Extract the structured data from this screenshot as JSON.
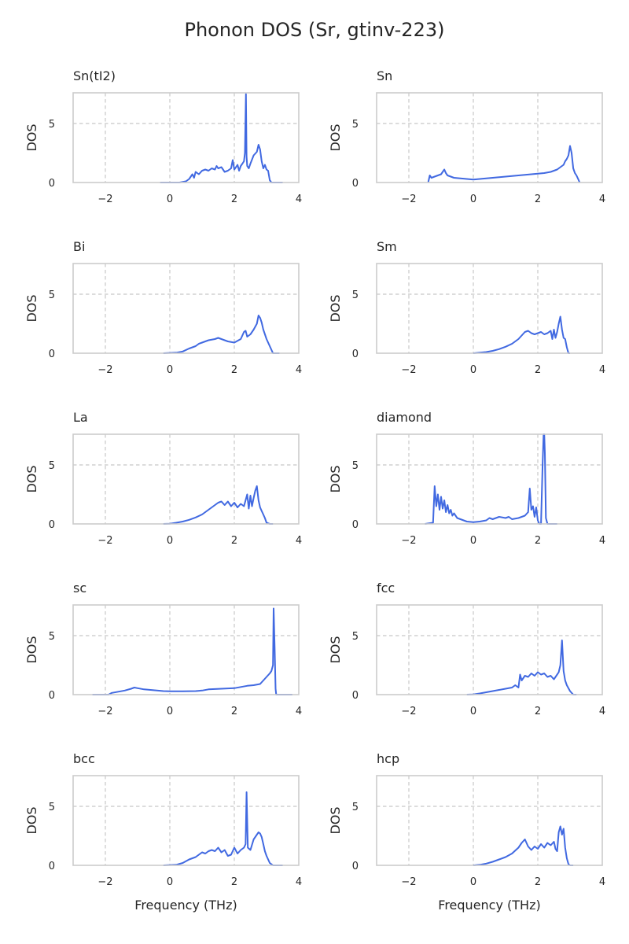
{
  "figure": {
    "title": "Phonon DOS (Sr, gtinv-223)",
    "line_color": "#4169e1"
  },
  "chart_data": [
    {
      "type": "line",
      "title": "Sn(tI2)",
      "xlabel": "",
      "ylabel": "DOS",
      "xlim": [
        -3,
        4
      ],
      "ylim": [
        0,
        7.6
      ],
      "xticks": [
        "−2",
        "0",
        "2",
        "4"
      ],
      "xtick_values": [
        -2,
        0,
        2,
        4
      ],
      "yticks": [
        "0",
        "5"
      ],
      "ytick_values": [
        0,
        5
      ],
      "grid": true,
      "series": [
        {
          "x": [
            -0.3,
            0.3,
            0.5,
            0.6,
            0.7,
            0.75,
            0.8,
            0.9,
            1.0,
            1.1,
            1.2,
            1.3,
            1.4,
            1.45,
            1.5,
            1.6,
            1.7,
            1.8,
            1.9,
            1.95,
            2.0,
            2.05,
            2.1,
            2.15,
            2.2,
            2.25,
            2.3,
            2.33,
            2.36,
            2.38,
            2.4,
            2.45,
            2.5,
            2.6,
            2.7,
            2.75,
            2.8,
            2.85,
            2.9,
            2.95,
            3.0,
            3.05,
            3.1,
            3.15,
            3.5
          ],
          "y": [
            0,
            0,
            0.1,
            0.3,
            0.7,
            0.4,
            0.9,
            0.7,
            1.0,
            1.1,
            1.0,
            1.2,
            1.1,
            1.4,
            1.2,
            1.3,
            0.9,
            1.0,
            1.2,
            1.9,
            1.1,
            1.3,
            1.5,
            1.0,
            1.4,
            1.6,
            1.8,
            2.5,
            7.5,
            2.2,
            1.4,
            1.2,
            1.6,
            2.3,
            2.6,
            3.2,
            2.8,
            1.8,
            1.2,
            1.5,
            1.1,
            1.0,
            0.2,
            0,
            0
          ]
        }
      ]
    },
    {
      "type": "line",
      "title": "Sn",
      "xlabel": "",
      "ylabel": "DOS",
      "xlim": [
        -3,
        4
      ],
      "ylim": [
        0,
        7.6
      ],
      "xticks": [
        "−2",
        "0",
        "2",
        "4"
      ],
      "xtick_values": [
        -2,
        0,
        2,
        4
      ],
      "yticks": [
        "0",
        "5"
      ],
      "ytick_values": [
        0,
        5
      ],
      "grid": true,
      "series": [
        {
          "x": [
            -1.4,
            -1.35,
            -1.3,
            -1.2,
            -1.1,
            -1.0,
            -0.9,
            -0.85,
            -0.8,
            -0.6,
            -0.4,
            -0.2,
            0.0,
            0.2,
            0.4,
            0.6,
            0.8,
            1.0,
            1.2,
            1.4,
            1.6,
            1.8,
            2.0,
            2.2,
            2.4,
            2.5,
            2.6,
            2.7,
            2.8,
            2.85,
            2.9,
            2.95,
            3.0,
            3.05,
            3.1,
            3.15,
            3.2,
            3.25,
            3.3
          ],
          "y": [
            0,
            0.6,
            0.4,
            0.5,
            0.6,
            0.7,
            1.1,
            0.8,
            0.6,
            0.4,
            0.35,
            0.3,
            0.25,
            0.3,
            0.35,
            0.4,
            0.45,
            0.5,
            0.55,
            0.6,
            0.65,
            0.7,
            0.75,
            0.8,
            0.9,
            1.0,
            1.1,
            1.3,
            1.5,
            1.8,
            2.0,
            2.3,
            3.1,
            2.5,
            1.2,
            0.8,
            0.6,
            0.3,
            0
          ]
        }
      ]
    },
    {
      "type": "line",
      "title": "Bi",
      "xlabel": "",
      "ylabel": "DOS",
      "xlim": [
        -3,
        4
      ],
      "ylim": [
        0,
        7.6
      ],
      "xticks": [
        "−2",
        "0",
        "2",
        "4"
      ],
      "xtick_values": [
        -2,
        0,
        2,
        4
      ],
      "yticks": [
        "0",
        "5"
      ],
      "ytick_values": [
        0,
        5
      ],
      "grid": true,
      "series": [
        {
          "x": [
            -0.2,
            0.2,
            0.4,
            0.6,
            0.8,
            0.9,
            1.0,
            1.2,
            1.4,
            1.5,
            1.6,
            1.8,
            2.0,
            2.2,
            2.3,
            2.35,
            2.4,
            2.5,
            2.6,
            2.7,
            2.75,
            2.8,
            2.85,
            2.9,
            3.0,
            3.1,
            3.2,
            3.4
          ],
          "y": [
            0,
            0.05,
            0.15,
            0.4,
            0.6,
            0.8,
            0.9,
            1.1,
            1.2,
            1.3,
            1.2,
            1.0,
            0.9,
            1.2,
            1.8,
            1.9,
            1.4,
            1.6,
            2.0,
            2.5,
            3.2,
            3.0,
            2.6,
            2.0,
            1.2,
            0.6,
            0,
            0
          ]
        }
      ]
    },
    {
      "type": "line",
      "title": "Sm",
      "xlabel": "",
      "ylabel": "DOS",
      "xlim": [
        -3,
        4
      ],
      "ylim": [
        0,
        7.6
      ],
      "xticks": [
        "−2",
        "0",
        "2",
        "4"
      ],
      "xtick_values": [
        -2,
        0,
        2,
        4
      ],
      "yticks": [
        "0",
        "5"
      ],
      "ytick_values": [
        0,
        5
      ],
      "grid": true,
      "series": [
        {
          "x": [
            0.0,
            0.2,
            0.4,
            0.6,
            0.8,
            1.0,
            1.2,
            1.4,
            1.5,
            1.6,
            1.7,
            1.8,
            1.9,
            2.0,
            2.1,
            2.2,
            2.3,
            2.4,
            2.45,
            2.5,
            2.55,
            2.6,
            2.65,
            2.7,
            2.75,
            2.8,
            2.85,
            2.9,
            2.95,
            3.0
          ],
          "y": [
            0,
            0.05,
            0.1,
            0.2,
            0.35,
            0.55,
            0.8,
            1.2,
            1.5,
            1.8,
            1.9,
            1.7,
            1.6,
            1.7,
            1.8,
            1.6,
            1.7,
            1.9,
            1.2,
            2.0,
            1.3,
            1.8,
            2.5,
            3.1,
            2.0,
            1.3,
            1.2,
            0.5,
            0,
            0
          ]
        }
      ]
    },
    {
      "type": "line",
      "title": "La",
      "xlabel": "",
      "ylabel": "DOS",
      "xlim": [
        -3,
        4
      ],
      "ylim": [
        0,
        7.6
      ],
      "xticks": [
        "−2",
        "0",
        "2",
        "4"
      ],
      "xtick_values": [
        -2,
        0,
        2,
        4
      ],
      "yticks": [
        "0",
        "5"
      ],
      "ytick_values": [
        0,
        5
      ],
      "grid": true,
      "series": [
        {
          "x": [
            -0.2,
            0.0,
            0.2,
            0.4,
            0.6,
            0.8,
            1.0,
            1.2,
            1.4,
            1.5,
            1.6,
            1.7,
            1.8,
            1.9,
            2.0,
            2.1,
            2.2,
            2.3,
            2.4,
            2.45,
            2.5,
            2.55,
            2.6,
            2.65,
            2.7,
            2.75,
            2.8,
            2.85,
            2.9,
            2.95,
            3.0,
            3.1,
            3.2
          ],
          "y": [
            0,
            0.02,
            0.1,
            0.2,
            0.35,
            0.55,
            0.8,
            1.2,
            1.6,
            1.8,
            1.9,
            1.6,
            1.9,
            1.5,
            1.8,
            1.4,
            1.7,
            1.5,
            2.5,
            1.3,
            2.4,
            1.5,
            2.2,
            2.8,
            3.2,
            2.0,
            1.4,
            1.1,
            0.8,
            0.5,
            0.1,
            0,
            0
          ]
        }
      ]
    },
    {
      "type": "line",
      "title": "diamond",
      "xlabel": "",
      "ylabel": "DOS",
      "xlim": [
        -3,
        4
      ],
      "ylim": [
        0,
        7.6
      ],
      "xticks": [
        "−2",
        "0",
        "2",
        "4"
      ],
      "xtick_values": [
        -2,
        0,
        2,
        4
      ],
      "yticks": [
        "0",
        "5"
      ],
      "ytick_values": [
        0,
        5
      ],
      "grid": true,
      "series": [
        {
          "x": [
            -1.5,
            -1.25,
            -1.2,
            -1.15,
            -1.1,
            -1.05,
            -1.0,
            -0.95,
            -0.9,
            -0.85,
            -0.8,
            -0.75,
            -0.7,
            -0.65,
            -0.6,
            -0.5,
            -0.4,
            -0.3,
            -0.2,
            0.0,
            0.2,
            0.4,
            0.5,
            0.6,
            0.8,
            1.0,
            1.1,
            1.2,
            1.4,
            1.6,
            1.7,
            1.75,
            1.8,
            1.85,
            1.9,
            1.95,
            2.0,
            2.05,
            2.1,
            2.15,
            2.18,
            2.2,
            2.22,
            2.25,
            2.3,
            2.5,
            2.6
          ],
          "y": [
            0,
            0.1,
            3.2,
            1.5,
            2.5,
            1.2,
            2.3,
            1.3,
            2.0,
            1.0,
            1.6,
            0.9,
            1.2,
            0.7,
            0.9,
            0.5,
            0.4,
            0.3,
            0.2,
            0.15,
            0.2,
            0.3,
            0.5,
            0.4,
            0.6,
            0.5,
            0.6,
            0.4,
            0.5,
            0.7,
            1.0,
            3.0,
            1.2,
            1.5,
            0.6,
            1.4,
            0.3,
            0,
            0,
            5.0,
            7.6,
            7.6,
            6.0,
            0.5,
            0,
            0,
            0
          ]
        }
      ]
    },
    {
      "type": "line",
      "title": "sc",
      "xlabel": "",
      "ylabel": "DOS",
      "xlim": [
        -3,
        4
      ],
      "ylim": [
        0,
        7.6
      ],
      "xticks": [
        "−2",
        "0",
        "2",
        "4"
      ],
      "xtick_values": [
        -2,
        0,
        2,
        4
      ],
      "yticks": [
        "0",
        "5"
      ],
      "ytick_values": [
        0,
        5
      ],
      "grid": true,
      "series": [
        {
          "x": [
            -2.4,
            -1.9,
            -1.8,
            -1.6,
            -1.4,
            -1.2,
            -1.1,
            -1.0,
            -0.8,
            -0.6,
            -0.4,
            -0.2,
            0.0,
            0.4,
            0.8,
            1.0,
            1.2,
            1.6,
            2.0,
            2.2,
            2.4,
            2.6,
            2.8,
            2.9,
            3.0,
            3.1,
            3.15,
            3.2,
            3.22,
            3.25,
            3.28,
            3.3,
            3.8
          ],
          "y": [
            0,
            0,
            0.15,
            0.25,
            0.35,
            0.5,
            0.6,
            0.55,
            0.45,
            0.4,
            0.35,
            0.3,
            0.28,
            0.28,
            0.3,
            0.35,
            0.45,
            0.5,
            0.55,
            0.65,
            0.75,
            0.8,
            0.9,
            1.2,
            1.5,
            1.8,
            2.0,
            2.5,
            7.3,
            4.0,
            0.5,
            0,
            0
          ]
        }
      ]
    },
    {
      "type": "line",
      "title": "fcc",
      "xlabel": "",
      "ylabel": "DOS",
      "xlim": [
        -3,
        4
      ],
      "ylim": [
        0,
        7.6
      ],
      "xticks": [
        "−2",
        "0",
        "2",
        "4"
      ],
      "xtick_values": [
        -2,
        0,
        2,
        4
      ],
      "yticks": [
        "0",
        "5"
      ],
      "ytick_values": [
        0,
        5
      ],
      "grid": true,
      "series": [
        {
          "x": [
            -0.2,
            0.0,
            0.2,
            0.4,
            0.6,
            0.8,
            1.0,
            1.2,
            1.3,
            1.4,
            1.45,
            1.5,
            1.6,
            1.7,
            1.8,
            1.9,
            2.0,
            2.1,
            2.2,
            2.3,
            2.4,
            2.5,
            2.6,
            2.65,
            2.7,
            2.75,
            2.8,
            2.85,
            2.9,
            3.0,
            3.1,
            3.2
          ],
          "y": [
            0,
            0.02,
            0.1,
            0.2,
            0.3,
            0.4,
            0.5,
            0.6,
            0.8,
            0.6,
            1.7,
            1.2,
            1.6,
            1.5,
            1.8,
            1.6,
            1.9,
            1.7,
            1.8,
            1.5,
            1.6,
            1.3,
            1.7,
            1.9,
            2.5,
            4.6,
            2.0,
            1.2,
            0.8,
            0.3,
            0,
            0
          ]
        }
      ]
    },
    {
      "type": "line",
      "title": "bcc",
      "xlabel": "Frequency (THz)",
      "ylabel": "DOS",
      "xlim": [
        -3,
        4
      ],
      "ylim": [
        0,
        7.6
      ],
      "xticks": [
        "−2",
        "0",
        "2",
        "4"
      ],
      "xtick_values": [
        -2,
        0,
        2,
        4
      ],
      "yticks": [
        "0",
        "5"
      ],
      "ytick_values": [
        0,
        5
      ],
      "grid": true,
      "series": [
        {
          "x": [
            -0.2,
            0.2,
            0.4,
            0.6,
            0.8,
            0.9,
            1.0,
            1.1,
            1.2,
            1.3,
            1.4,
            1.5,
            1.6,
            1.7,
            1.8,
            1.9,
            2.0,
            2.1,
            2.2,
            2.3,
            2.35,
            2.38,
            2.42,
            2.5,
            2.6,
            2.7,
            2.75,
            2.8,
            2.85,
            2.9,
            2.95,
            3.0,
            3.1,
            3.2,
            3.5
          ],
          "y": [
            0,
            0.05,
            0.2,
            0.5,
            0.7,
            0.9,
            1.1,
            1.0,
            1.2,
            1.3,
            1.2,
            1.5,
            1.1,
            1.3,
            0.8,
            0.9,
            1.5,
            1.0,
            1.3,
            1.5,
            1.8,
            6.2,
            1.5,
            1.3,
            2.2,
            2.6,
            2.8,
            2.7,
            2.4,
            1.8,
            1.2,
            0.8,
            0.2,
            0,
            0
          ]
        }
      ]
    },
    {
      "type": "line",
      "title": "hcp",
      "xlabel": "Frequency (THz)",
      "ylabel": "DOS",
      "xlim": [
        -3,
        4
      ],
      "ylim": [
        0,
        7.6
      ],
      "xticks": [
        "−2",
        "0",
        "2",
        "4"
      ],
      "xtick_values": [
        -2,
        0,
        2,
        4
      ],
      "yticks": [
        "0",
        "5"
      ],
      "ytick_values": [
        0,
        5
      ],
      "grid": true,
      "series": [
        {
          "x": [
            0.0,
            0.2,
            0.4,
            0.6,
            0.8,
            1.0,
            1.2,
            1.4,
            1.5,
            1.6,
            1.7,
            1.8,
            1.9,
            2.0,
            2.1,
            2.2,
            2.3,
            2.4,
            2.5,
            2.55,
            2.6,
            2.65,
            2.7,
            2.75,
            2.8,
            2.85,
            2.9,
            2.95,
            3.0,
            3.1
          ],
          "y": [
            0,
            0.05,
            0.15,
            0.3,
            0.5,
            0.7,
            1.0,
            1.5,
            1.9,
            2.2,
            1.6,
            1.3,
            1.6,
            1.4,
            1.8,
            1.5,
            1.9,
            1.7,
            2.0,
            1.4,
            1.2,
            2.8,
            3.3,
            2.6,
            3.1,
            1.5,
            0.6,
            0.1,
            0,
            0
          ]
        }
      ]
    }
  ]
}
